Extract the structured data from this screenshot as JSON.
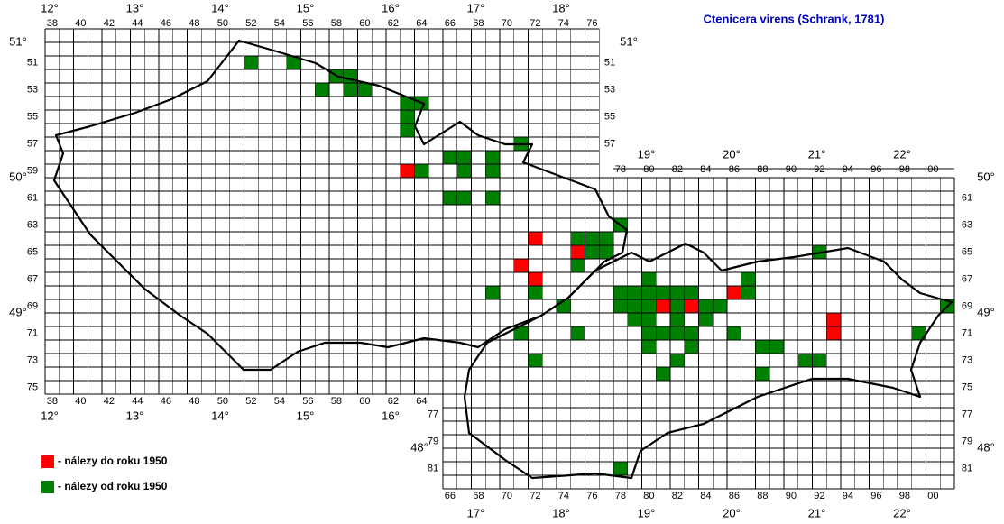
{
  "title": "Ctenicera virens (Schrank, 1781)",
  "legend": [
    {
      "label": "- nálezy do roku 1950",
      "color": "#ff0000"
    },
    {
      "label": "- nálezy od roku 1950",
      "color": "#008000"
    }
  ],
  "grid_labels": {
    "cz_top": [
      "38",
      "40",
      "42",
      "44",
      "46",
      "48",
      "50",
      "52",
      "54",
      "56",
      "58",
      "60",
      "62",
      "64",
      "66",
      "68",
      "70",
      "72",
      "74",
      "76"
    ],
    "cz_bottom": [
      "38",
      "40",
      "42",
      "44",
      "46",
      "48",
      "50",
      "52",
      "54",
      "56",
      "58",
      "60",
      "62",
      "64"
    ],
    "sk_top": [
      "78",
      "80",
      "82",
      "84",
      "86",
      "88",
      "90",
      "92",
      "94",
      "96",
      "98",
      "00"
    ],
    "sk_bottom": [
      "66",
      "68",
      "70",
      "72",
      "74",
      "76",
      "78",
      "80",
      "82",
      "84",
      "86",
      "88",
      "90",
      "92",
      "94",
      "96",
      "98",
      "00"
    ],
    "left_rows": [
      "51",
      "53",
      "55",
      "57",
      "59",
      "61",
      "63",
      "65",
      "67",
      "69",
      "71",
      "73",
      "75"
    ],
    "cz_right_rows": [
      "51",
      "53",
      "55",
      "57"
    ],
    "sk_right_rows": [
      "61",
      "63",
      "65",
      "67",
      "69",
      "71",
      "73",
      "75",
      "77",
      "79",
      "81"
    ],
    "sk_left_rows": [
      "77",
      "79",
      "81"
    ]
  },
  "degree_labels": {
    "top": [
      "12°",
      "13°",
      "14°",
      "15°",
      "16°",
      "17°",
      "18°"
    ],
    "cz_bottom": [
      "12°",
      "13°",
      "14°",
      "15°",
      "16°"
    ],
    "sk_top": [
      "19°",
      "20°",
      "21°",
      "22°"
    ],
    "sk_bottom": [
      "17°",
      "18°",
      "19°",
      "20°",
      "21°",
      "22°"
    ],
    "lat_left": [
      "51°",
      "50°",
      "49°"
    ],
    "lat_right": [
      "51°",
      "50°",
      "49°"
    ],
    "lat_48": [
      "48°",
      "48°"
    ]
  }
}
